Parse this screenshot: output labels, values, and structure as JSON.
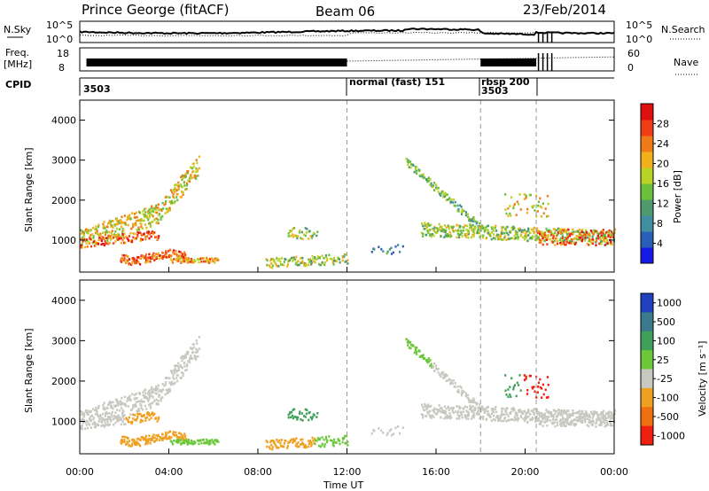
{
  "header": {
    "station": "Prince George (fitACF)",
    "beam": "Beam 06",
    "date": "23/Feb/2014"
  },
  "aux_panels": {
    "nsky_label": "N.Sky",
    "nsky_ticks": [
      "10^5",
      "10^0"
    ],
    "nsearch_label": "N.Search",
    "freq_label_1": "Freq.",
    "freq_label_2": "[MHz]",
    "freq_ticks": [
      "18",
      "8"
    ],
    "nave_label": "Nave",
    "nave_ticks": [
      "60",
      "0"
    ],
    "cpid_label": "CPID",
    "cpid_segments": [
      {
        "hour": 0,
        "label": "3503"
      },
      {
        "hour": 12,
        "label": "normal (fast) 151"
      },
      {
        "hour": 18,
        "label": "rbsp 200"
      },
      {
        "hour": 18,
        "label": "3503"
      }
    ]
  },
  "chart_data": [
    {
      "type": "heatmap",
      "name": "power",
      "ylabel": "Slant Range [km]",
      "xlabel": "",
      "xlim": [
        0,
        24
      ],
      "ylim": [
        200,
        4500
      ],
      "yticks": [
        "1000",
        "2000",
        "3000",
        "4000"
      ],
      "xticks": [
        "00:00",
        "04:00",
        "08:00",
        "12:00",
        "16:00",
        "20:00",
        "00:00"
      ],
      "colorbar": {
        "label": "Power [dB]",
        "range": [
          0,
          32
        ],
        "ticks": [
          "4",
          "8",
          "12",
          "16",
          "20",
          "24",
          "28"
        ],
        "colors": [
          "#1a1ae6",
          "#2a5fb8",
          "#3f8fa0",
          "#4f9a6e",
          "#6cbf3a",
          "#b8d226",
          "#f2b01e",
          "#f07a18",
          "#ef3d16",
          "#e01010"
        ]
      }
    },
    {
      "type": "heatmap",
      "name": "velocity",
      "ylabel": "Slant Range [km]",
      "xlabel": "Time UT",
      "xlim": [
        0,
        24
      ],
      "ylim": [
        200,
        4500
      ],
      "yticks": [
        "1000",
        "2000",
        "3000",
        "4000"
      ],
      "xticks": [
        "00:00",
        "04:00",
        "08:00",
        "12:00",
        "16:00",
        "20:00",
        "00:00"
      ],
      "colorbar": {
        "label": "Velocity [m s⁻¹]",
        "ticks": [
          "1000",
          "500",
          "100",
          "25",
          "-25",
          "-100",
          "-500",
          "-1000"
        ],
        "colors": [
          "#2040c0",
          "#3a7a8a",
          "#3fa05a",
          "#6cc83a",
          "#c8c8c0",
          "#f0a020",
          "#ef7010",
          "#ef2010"
        ]
      }
    }
  ]
}
